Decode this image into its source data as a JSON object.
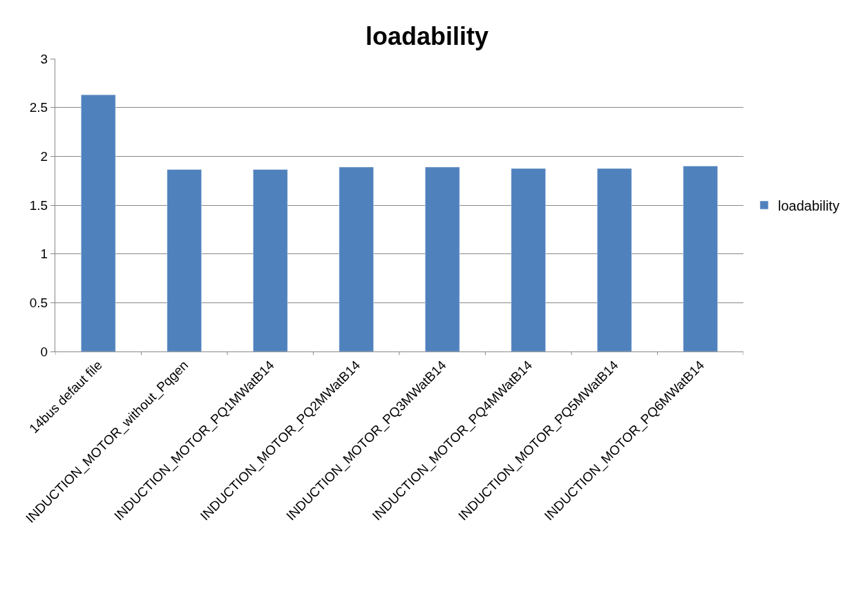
{
  "chart_data": {
    "type": "bar",
    "title": "loadability",
    "categories": [
      "14bus defaut file",
      "INDUCTION_MOTOR_without_Pqgen",
      "INDUCTION_MOTOR_PQ1MWatB14",
      "INDUCTION_MOTOR_PQ2MWatB14",
      "INDUCTION_MOTOR_PQ3MWatB14",
      "INDUCTION_MOTOR_PQ4MWatB14",
      "INDUCTION_MOTOR_PQ5MWatB14",
      "INDUCTION_MOTOR_PQ6MWatB14"
    ],
    "series": [
      {
        "name": "loadability",
        "color": "#4f81bd",
        "values": [
          2.63,
          1.865,
          1.865,
          1.89,
          1.89,
          1.875,
          1.875,
          1.9
        ]
      }
    ],
    "ylim": [
      0,
      3
    ],
    "yticks": [
      0,
      0.5,
      1,
      1.5,
      2,
      2.5,
      3
    ],
    "grid": "y",
    "legend": "right"
  }
}
